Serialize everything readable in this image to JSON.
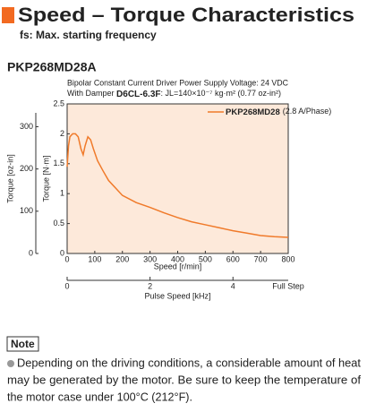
{
  "header": {
    "title": "Speed – Torque Characteristics",
    "subtitle": "fs: Max. starting frequency",
    "model": "PKP268MD28A"
  },
  "chart_data": {
    "type": "line",
    "conditions": [
      "Bipolar Constant Current Driver  Power Supply Voltage: 24 VDC",
      "With Damper",
      "D6CL-6.3F",
      ": JL=140×10⁻⁷ kg·m² (0.77 oz-in²)"
    ],
    "xlabel": "Speed [r/min]",
    "ylabel": "Torque [N·m]",
    "y2label": "Torque [oz-in]",
    "x2label": "Pulse Speed [kHz]",
    "x2_end_label": "Full Step",
    "xlim": [
      0,
      800
    ],
    "xticks": [
      0,
      100,
      200,
      300,
      400,
      500,
      600,
      700,
      800
    ],
    "ylim": [
      0,
      2.5
    ],
    "yticks": [
      0,
      0.5,
      1.0,
      1.5,
      2.0,
      2.5
    ],
    "y2lim": [
      0,
      354
    ],
    "y2ticks": [
      0,
      100,
      200,
      300
    ],
    "x2lim": [
      0,
      5.333
    ],
    "x2ticks": [
      0,
      2,
      4
    ],
    "x": [
      0,
      5,
      10,
      20,
      30,
      40,
      50,
      58,
      65,
      75,
      85,
      95,
      110,
      130,
      150,
      200,
      250,
      300,
      350,
      400,
      450,
      500,
      550,
      600,
      650,
      700,
      750,
      800
    ],
    "series": [
      {
        "name": "PKP268MD28",
        "current": "(2.8 A/Phase)",
        "color": "#f07a2a",
        "values": [
          1.45,
          1.8,
          1.95,
          2.0,
          2.0,
          1.95,
          1.75,
          1.65,
          1.8,
          1.95,
          1.9,
          1.75,
          1.55,
          1.38,
          1.22,
          0.97,
          0.85,
          0.77,
          0.68,
          0.6,
          0.53,
          0.48,
          0.43,
          0.38,
          0.34,
          0.3,
          0.28,
          0.27
        ]
      }
    ],
    "background": "#fde9da"
  },
  "note": {
    "title": "Note",
    "lines": [
      "Depending on the driving conditions, a considerable amount of heat",
      "may be generated by the motor. Be sure to keep the temperature of",
      "the motor case under 100°C (212°F)."
    ]
  }
}
